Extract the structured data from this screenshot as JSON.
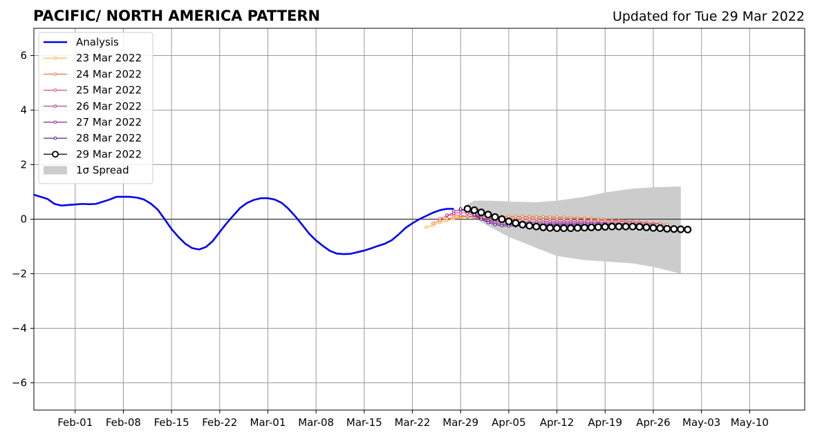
{
  "chart_data": {
    "type": "line",
    "title": "PACIFIC/ NORTH AMERICA PATTERN",
    "subtitle": "Updated for Tue 29 Mar 2022",
    "xlabel": "",
    "ylabel": "",
    "ylim": [
      -7,
      7
    ],
    "xlim": [
      "2022-01-26",
      "2022-05-18"
    ],
    "grid": true,
    "legend_position": "top-left",
    "x_tick_labels": [
      "Feb-01",
      "Feb-08",
      "Feb-15",
      "Feb-22",
      "Mar-01",
      "Mar-08",
      "Mar-15",
      "Mar-22",
      "Mar-29",
      "Apr-05",
      "Apr-12",
      "Apr-19",
      "Apr-26",
      "May-03",
      "May-10"
    ],
    "x_tick_dates": [
      "2022-02-01",
      "2022-02-08",
      "2022-02-15",
      "2022-02-22",
      "2022-03-01",
      "2022-03-08",
      "2022-03-15",
      "2022-03-22",
      "2022-03-29",
      "2022-04-05",
      "2022-04-12",
      "2022-04-19",
      "2022-04-26",
      "2022-05-03",
      "2022-05-10"
    ],
    "y_tick_labels": [
      "−6",
      "−4",
      "−2",
      "0",
      "2",
      "4",
      "6"
    ],
    "y_ticks": [
      -6,
      -4,
      -2,
      0,
      2,
      4,
      6
    ],
    "analysis": {
      "name": "Analysis",
      "color": "#0000ee",
      "start_date": "2022-01-26",
      "values": [
        0.9,
        0.82,
        0.74,
        0.56,
        0.5,
        0.52,
        0.54,
        0.56,
        0.55,
        0.56,
        0.64,
        0.72,
        0.82,
        0.82,
        0.82,
        0.79,
        0.72,
        0.57,
        0.35,
        0.0,
        -0.36,
        -0.65,
        -0.9,
        -1.06,
        -1.11,
        -1.02,
        -0.8,
        -0.47,
        -0.15,
        0.14,
        0.42,
        0.6,
        0.71,
        0.77,
        0.77,
        0.72,
        0.6,
        0.38,
        0.1,
        -0.21,
        -0.53,
        -0.78,
        -0.98,
        -1.16,
        -1.26,
        -1.28,
        -1.27,
        -1.21,
        -1.15,
        -1.07,
        -0.98,
        -0.9,
        -0.77,
        -0.56,
        -0.32,
        -0.15,
        0.0,
        0.12,
        0.24,
        0.33,
        0.38,
        0.38
      ]
    },
    "spread": {
      "name": "1σ Spread",
      "color": "#cccccc",
      "dates": [
        "2022-03-30",
        "2022-03-31",
        "2022-04-02",
        "2022-04-05",
        "2022-04-09",
        "2022-04-12",
        "2022-04-16",
        "2022-04-19",
        "2022-04-23",
        "2022-04-26",
        "2022-04-30"
      ],
      "upper": [
        0.55,
        0.68,
        0.68,
        0.65,
        0.62,
        0.68,
        0.82,
        0.98,
        1.12,
        1.17,
        1.2
      ],
      "lower": [
        0.45,
        0.05,
        -0.25,
        -0.65,
        -1.05,
        -1.35,
        -1.5,
        -1.55,
        -1.62,
        -1.75,
        -2.0
      ]
    },
    "forecasts": [
      {
        "name": "23 Mar 2022",
        "color": "#fbb02c",
        "start_date": "2022-03-24",
        "values": [
          -0.3,
          -0.22,
          -0.12,
          -0.05,
          0.02,
          0.06,
          0.08,
          0.09,
          0.09,
          0.09,
          0.09,
          0.09,
          0.09,
          0.09,
          0.08,
          0.08,
          0.08,
          0.07,
          0.07,
          0.06,
          0.06,
          0.05,
          0.04,
          0.03,
          0.02,
          0.01,
          -0.01,
          -0.03,
          -0.05,
          -0.08,
          -0.1,
          -0.12,
          -0.14,
          -0.16,
          -0.18
        ]
      },
      {
        "name": "24 Mar 2022",
        "color": "#f0793a",
        "start_date": "2022-03-25",
        "values": [
          -0.15,
          -0.05,
          0.02,
          0.07,
          0.1,
          0.11,
          0.11,
          0.11,
          0.11,
          0.11,
          0.11,
          0.1,
          0.1,
          0.1,
          0.1,
          0.09,
          0.09,
          0.08,
          0.08,
          0.07,
          0.06,
          0.05,
          0.04,
          0.03,
          0.01,
          -0.01,
          -0.03,
          -0.05,
          -0.07,
          -0.09,
          -0.11,
          -0.13,
          -0.15,
          -0.17,
          -0.19
        ]
      },
      {
        "name": "25 Mar 2022",
        "color": "#dc4f63",
        "start_date": "2022-03-26",
        "values": [
          0.02,
          0.12,
          0.16,
          0.14,
          0.1,
          0.06,
          0.03,
          0.02,
          0.01,
          0.01,
          0.0,
          0.0,
          0.0,
          0.0,
          0.0,
          -0.01,
          -0.01,
          -0.01,
          -0.01,
          -0.02,
          -0.02,
          -0.03,
          -0.03,
          -0.04,
          -0.05,
          -0.06,
          -0.07,
          -0.09,
          -0.1,
          -0.12,
          -0.13,
          -0.15,
          -0.16
        ]
      },
      {
        "name": "26 Mar 2022",
        "color": "#b42e7e",
        "start_date": "2022-03-27",
        "values": [
          0.15,
          0.22,
          0.25,
          0.22,
          0.13,
          0.03,
          -0.04,
          -0.08,
          -0.1,
          -0.11,
          -0.11,
          -0.11,
          -0.11,
          -0.11,
          -0.1,
          -0.1,
          -0.1,
          -0.1,
          -0.1,
          -0.1,
          -0.11,
          -0.11,
          -0.12,
          -0.13,
          -0.14,
          -0.15,
          -0.16,
          -0.17,
          -0.18,
          -0.19,
          -0.2
        ]
      },
      {
        "name": "27 Mar 2022",
        "color": "#8e1fa0",
        "start_date": "2022-03-28",
        "values": [
          0.3,
          0.34,
          0.3,
          0.2,
          0.06,
          -0.06,
          -0.14,
          -0.18,
          -0.2,
          -0.2,
          -0.2,
          -0.19,
          -0.18,
          -0.17,
          -0.17,
          -0.16,
          -0.16,
          -0.16,
          -0.16,
          -0.16,
          -0.17,
          -0.17,
          -0.18,
          -0.19,
          -0.2,
          -0.21,
          -0.22,
          -0.23,
          -0.24
        ]
      },
      {
        "name": "28 Mar 2022",
        "color": "#4a0e87",
        "start_date": "2022-03-29",
        "values": [
          0.38,
          0.3,
          0.16,
          0.0,
          -0.12,
          -0.2,
          -0.24,
          -0.25,
          -0.25,
          -0.24,
          -0.23,
          -0.22,
          -0.22,
          -0.21,
          -0.21,
          -0.21,
          -0.21,
          -0.21,
          -0.22,
          -0.22,
          -0.23,
          -0.24,
          -0.25,
          -0.26,
          -0.27,
          -0.28,
          -0.29,
          -0.3
        ]
      },
      {
        "name": "29 Mar 2022",
        "color": "#000000",
        "start_date": "2022-03-30",
        "values": [
          0.38,
          0.33,
          0.25,
          0.17,
          0.08,
          0.0,
          -0.08,
          -0.14,
          -0.2,
          -0.24,
          -0.27,
          -0.3,
          -0.32,
          -0.33,
          -0.33,
          -0.33,
          -0.32,
          -0.31,
          -0.3,
          -0.29,
          -0.28,
          -0.27,
          -0.27,
          -0.27,
          -0.27,
          -0.28,
          -0.3,
          -0.32,
          -0.33,
          -0.35,
          -0.36,
          -0.37,
          -0.38
        ]
      }
    ]
  }
}
